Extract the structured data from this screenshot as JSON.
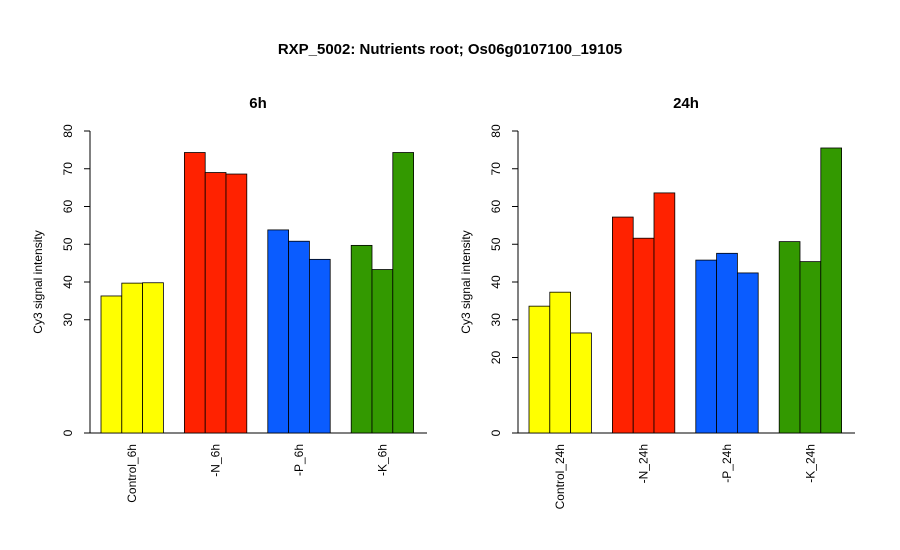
{
  "title": "RXP_5002: Nutrients root; Os06g0107100_19105",
  "colors": {
    "control": "#ffff00",
    "N": "#ff2200",
    "P": "#0a5cff",
    "K": "#339900"
  },
  "chart_data": [
    {
      "type": "bar",
      "title": "6h",
      "ylabel": "Cy3 signal intensity",
      "ylim": [
        0,
        80
      ],
      "yticks": [
        "0",
        "30",
        "40",
        "50",
        "60",
        "70",
        "80"
      ],
      "ytick_values": [
        0,
        30,
        40,
        50,
        60,
        70,
        80
      ],
      "grid": false,
      "categories": [
        "Control_6h",
        "-N_6h",
        "-P_6h",
        "-K_6h"
      ],
      "groups": [
        {
          "name": "Control_6h",
          "color_key": "control",
          "values": [
            36.3,
            39.7,
            39.8
          ]
        },
        {
          "name": "-N_6h",
          "color_key": "N",
          "values": [
            74.3,
            69.0,
            68.6
          ]
        },
        {
          "name": "-P_6h",
          "color_key": "P",
          "values": [
            53.8,
            50.8,
            46.0
          ]
        },
        {
          "name": "-K_6h",
          "color_key": "K",
          "values": [
            49.7,
            43.3,
            74.3
          ]
        }
      ]
    },
    {
      "type": "bar",
      "title": "24h",
      "ylabel": "Cy3 signal intensity",
      "ylim": [
        0,
        80
      ],
      "yticks": [
        "0",
        "20",
        "30",
        "40",
        "50",
        "60",
        "70",
        "80"
      ],
      "ytick_values": [
        0,
        20,
        30,
        40,
        50,
        60,
        70,
        80
      ],
      "grid": false,
      "categories": [
        "Control_24h",
        "-N_24h",
        "-P_24h",
        "-K_24h"
      ],
      "groups": [
        {
          "name": "Control_24h",
          "color_key": "control",
          "values": [
            33.6,
            37.3,
            26.5
          ]
        },
        {
          "name": "-N_24h",
          "color_key": "N",
          "values": [
            57.2,
            51.6,
            63.6
          ]
        },
        {
          "name": "-P_24h",
          "color_key": "P",
          "values": [
            45.8,
            47.6,
            42.4
          ]
        },
        {
          "name": "-K_24h",
          "color_key": "K",
          "values": [
            50.7,
            45.4,
            75.5
          ]
        }
      ]
    }
  ]
}
